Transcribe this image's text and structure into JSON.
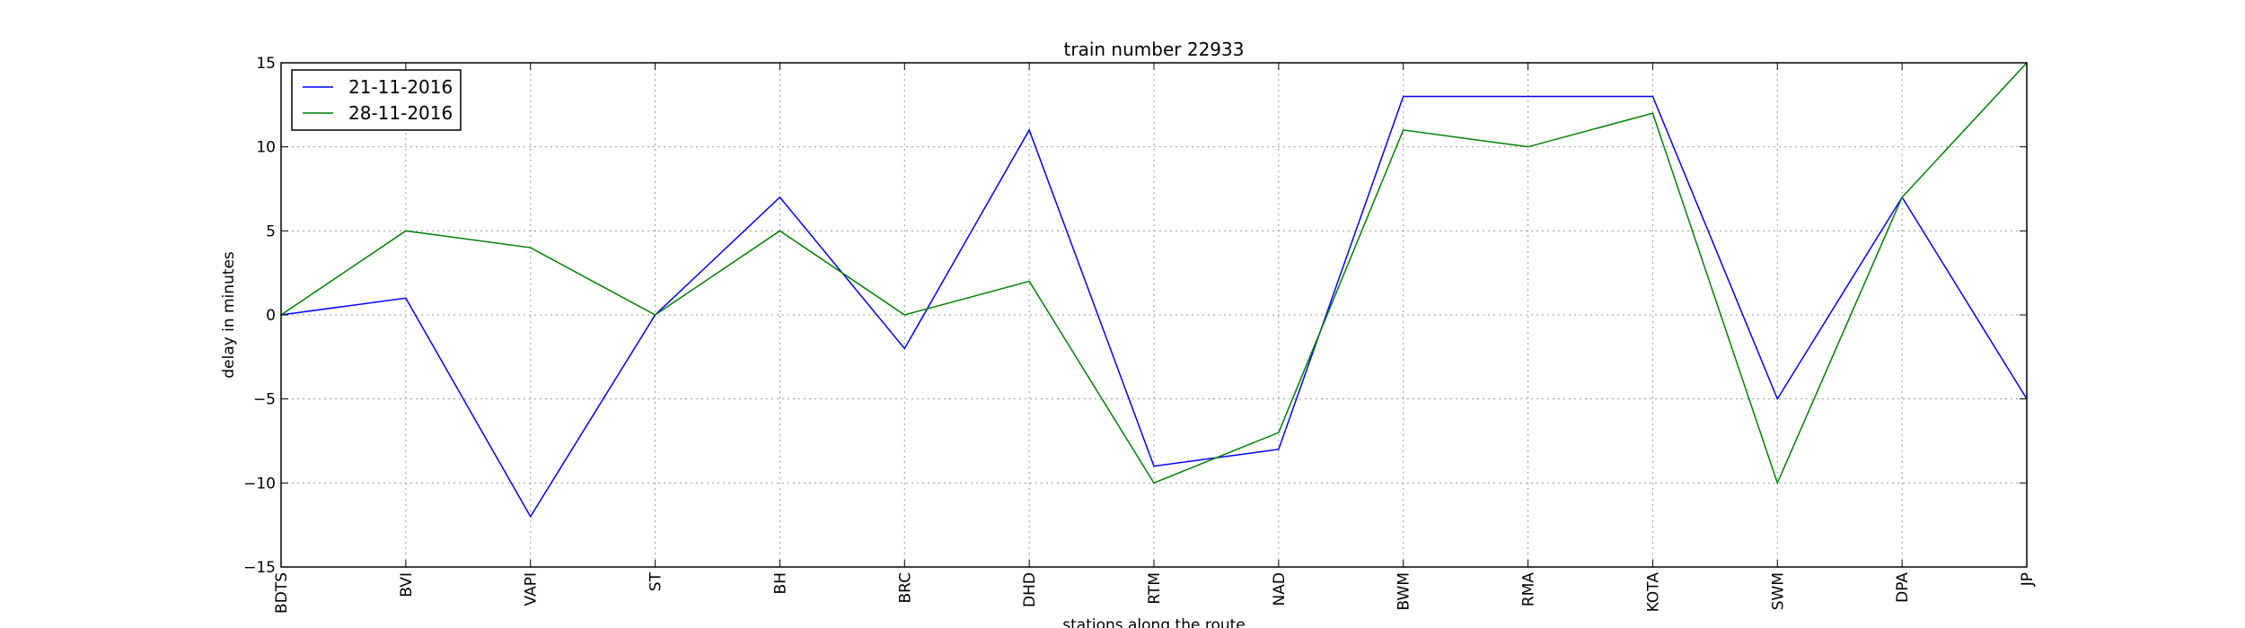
{
  "chart_data": {
    "type": "line",
    "title": "train number 22933",
    "xlabel": "stations along the route",
    "ylabel": "delay in minutes",
    "categories": [
      "BDTS",
      "BVI",
      "VAPI",
      "ST",
      "BH",
      "BRC",
      "DHD",
      "RTM",
      "NAD",
      "BWM",
      "RMA",
      "KOTA",
      "SWM",
      "DPA",
      "JP"
    ],
    "ylim": [
      -15,
      15
    ],
    "yticks": [
      -15,
      -10,
      -5,
      0,
      5,
      10,
      15
    ],
    "ytick_labels": [
      "−15",
      "−10",
      "−5",
      "0",
      "5",
      "10",
      "15"
    ],
    "grid": true,
    "legend_position": "top-left",
    "series": [
      {
        "name": "21-11-2016",
        "color": "#0000ff",
        "values": [
          0,
          1,
          -12,
          0,
          7,
          -2,
          11,
          -9,
          -8,
          13,
          13,
          13,
          -5,
          7,
          -5
        ]
      },
      {
        "name": "28-11-2016",
        "color": "#008000",
        "values": [
          0,
          5,
          4,
          0,
          5,
          0,
          2,
          -10,
          -7,
          11,
          10,
          12,
          -10,
          7,
          15
        ]
      }
    ]
  }
}
